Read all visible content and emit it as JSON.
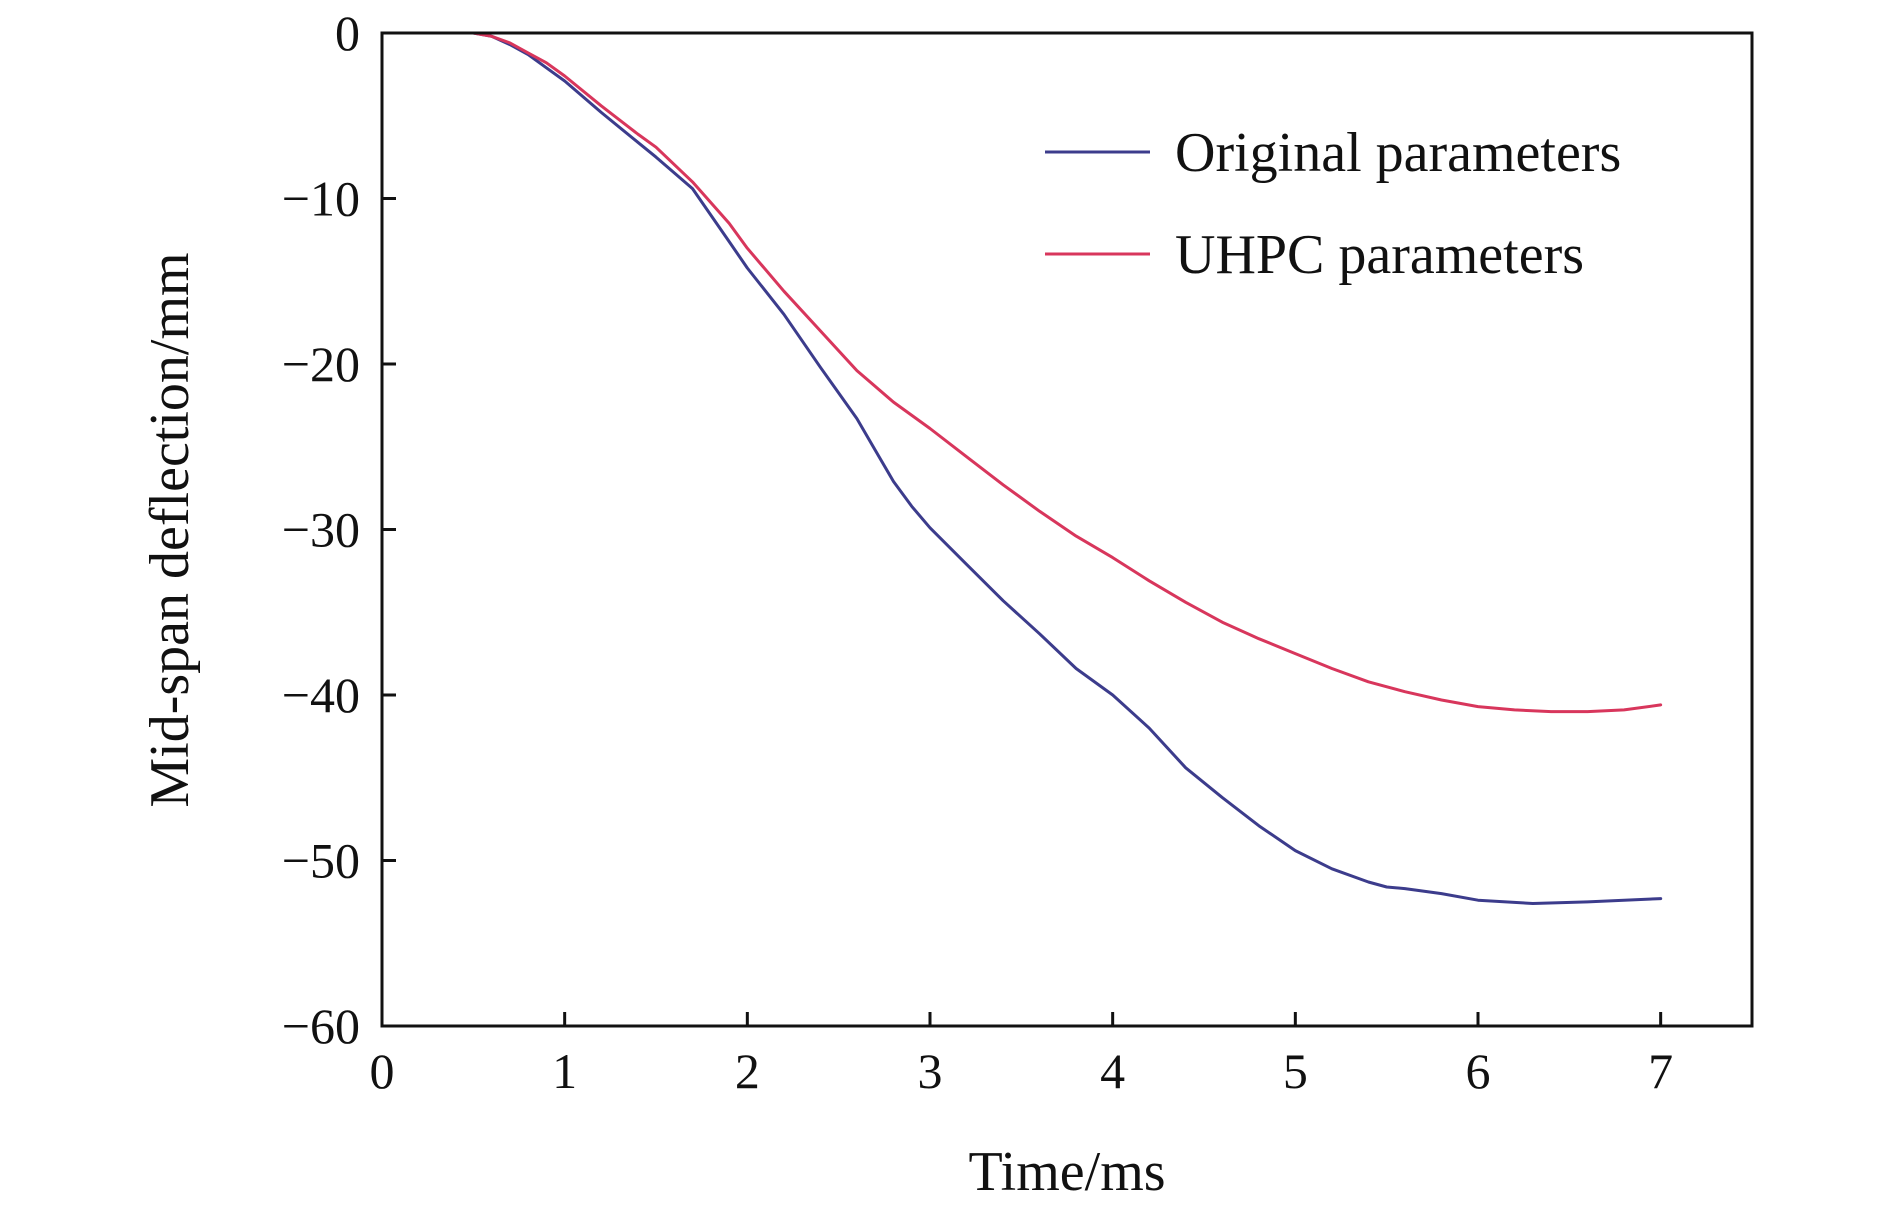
{
  "chart_data": {
    "type": "line",
    "title": "",
    "xlabel": "Time/ms",
    "ylabel": "Mid-span deflection/mm",
    "xlim": [
      0,
      7.5
    ],
    "ylim": [
      -60,
      0
    ],
    "xticks": [
      0,
      1,
      2,
      3,
      4,
      5,
      6,
      7
    ],
    "yticks": [
      0,
      -10,
      -20,
      -30,
      -40,
      -50,
      -60
    ],
    "grid": false,
    "legend_position": "top-right",
    "series": [
      {
        "name": "Original parameters",
        "color": "#3c3c8c",
        "x": [
          0,
          0.5,
          0.6,
          0.7,
          0.8,
          0.9,
          1.0,
          1.2,
          1.4,
          1.5,
          1.7,
          1.9,
          2.0,
          2.2,
          2.4,
          2.6,
          2.7,
          2.8,
          2.9,
          3.0,
          3.2,
          3.4,
          3.6,
          3.8,
          4.0,
          4.2,
          4.4,
          4.6,
          4.8,
          5.0,
          5.2,
          5.4,
          5.5,
          5.6,
          5.8,
          6.0,
          6.3,
          6.6,
          7.0
        ],
        "y": [
          0,
          0,
          -0.2,
          -0.7,
          -1.3,
          -2.1,
          -2.9,
          -4.8,
          -6.6,
          -7.5,
          -9.4,
          -12.6,
          -14.2,
          -17.0,
          -20.2,
          -23.3,
          -25.2,
          -27.1,
          -28.6,
          -29.9,
          -32.1,
          -34.3,
          -36.3,
          -38.4,
          -40.0,
          -42.0,
          -44.4,
          -46.2,
          -47.9,
          -49.4,
          -50.5,
          -51.3,
          -51.6,
          -51.7,
          -52.0,
          -52.4,
          -52.6,
          -52.5,
          -52.3
        ]
      },
      {
        "name": "UHPC parameters",
        "color": "#d8365c",
        "x": [
          0,
          0.5,
          0.6,
          0.7,
          0.8,
          0.9,
          1.0,
          1.2,
          1.4,
          1.5,
          1.7,
          1.9,
          2.0,
          2.2,
          2.4,
          2.6,
          2.8,
          3.0,
          3.2,
          3.4,
          3.6,
          3.8,
          4.0,
          4.2,
          4.4,
          4.6,
          4.8,
          5.0,
          5.2,
          5.4,
          5.6,
          5.8,
          6.0,
          6.2,
          6.4,
          6.6,
          6.8,
          7.0
        ],
        "y": [
          0,
          0,
          -0.2,
          -0.6,
          -1.2,
          -1.8,
          -2.6,
          -4.4,
          -6.1,
          -6.9,
          -9.0,
          -11.5,
          -13.0,
          -15.6,
          -18.0,
          -20.4,
          -22.3,
          -23.9,
          -25.6,
          -27.3,
          -28.9,
          -30.4,
          -31.7,
          -33.1,
          -34.4,
          -35.6,
          -36.6,
          -37.5,
          -38.4,
          -39.2,
          -39.8,
          -40.3,
          -40.7,
          -40.9,
          -41.0,
          -41.0,
          -40.9,
          -40.6
        ]
      }
    ]
  }
}
